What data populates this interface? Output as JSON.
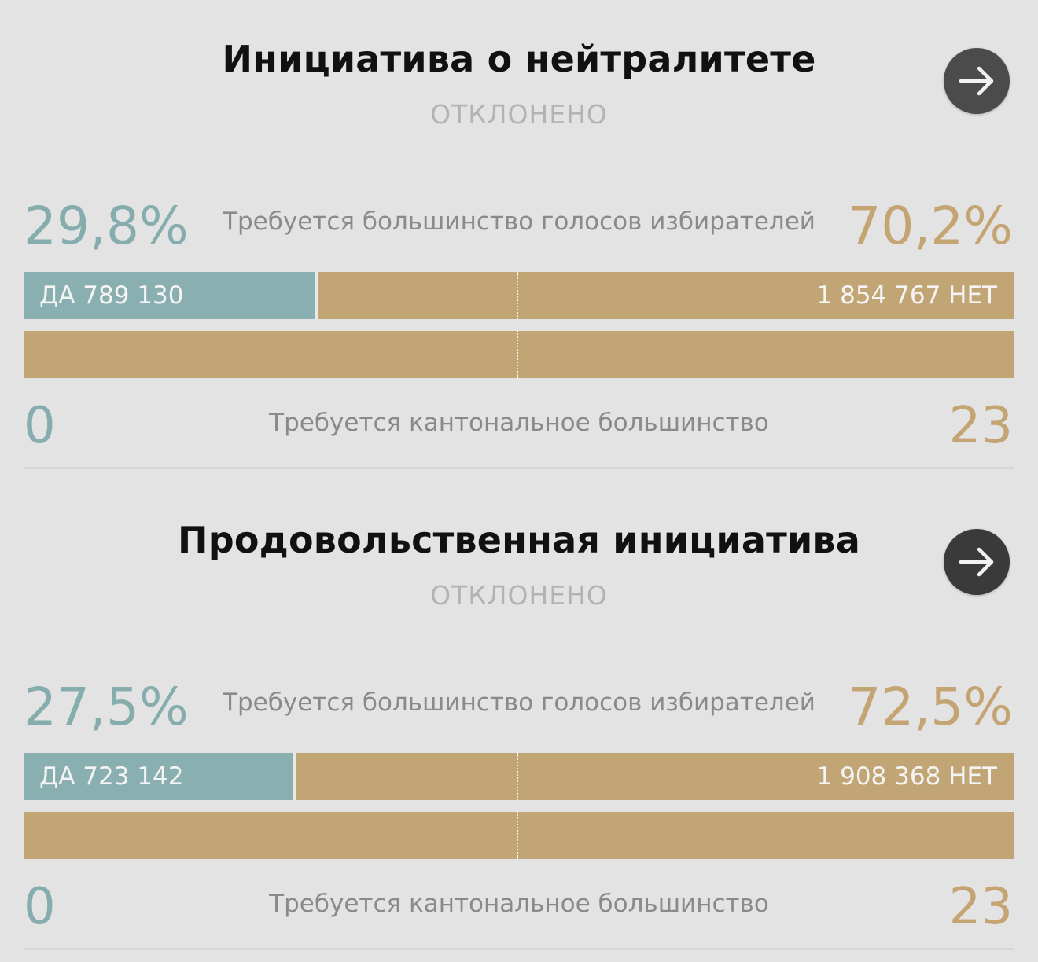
{
  "initiatives": [
    {
      "title": "Инициатива о нейтралитете",
      "status": "ОТКЛОНЕНО",
      "yes_percent": "29,8%",
      "no_percent": "70,2%",
      "yes_share": 0.298,
      "popular_requirement": "Требуется большинство голосов избирателей",
      "yes_votes_label": "ДА 789 130",
      "no_votes_label": "1 854 767 НЕТ",
      "canton_requirement": "Требуется кантональное большинство",
      "yes_cantons": "0",
      "no_cantons": "23",
      "yes_canton_share": 0,
      "button_icon": "arrow-right-icon"
    },
    {
      "title": "Продовольственная инициатива",
      "status": "ОТКЛОНЕНО",
      "yes_percent": "27,5%",
      "no_percent": "72,5%",
      "yes_share": 0.275,
      "popular_requirement": "Требуется большинство голосов избирателей",
      "yes_votes_label": "ДА 723 142",
      "no_votes_label": "1 908 368 НЕТ",
      "canton_requirement": "Требуется кантональное большинство",
      "yes_cantons": "0",
      "no_cantons": "23",
      "yes_canton_share": 0,
      "button_icon": "arrow-right-icon"
    }
  ],
  "colors": {
    "yes": "#8aafb0",
    "no": "#c1a574",
    "button": "#4b4b4b"
  }
}
